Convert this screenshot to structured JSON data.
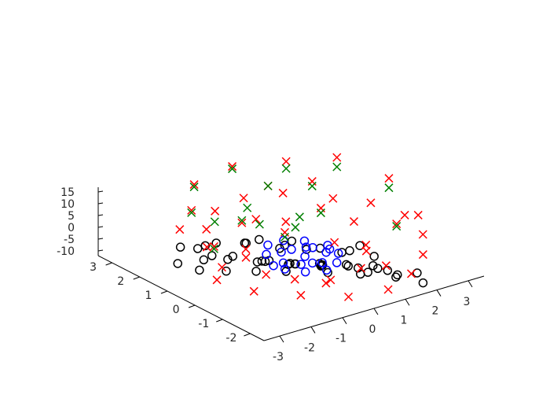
{
  "chart_data": {
    "type": "scatter",
    "subtype": "3d",
    "title": "",
    "xlabel": "",
    "ylabel": "",
    "zlabel": "",
    "xlim": [
      -3.5,
      3.5
    ],
    "ylim": [
      -2.5,
      3.5
    ],
    "zlim": [
      -12,
      17
    ],
    "x_ticks": [
      -3,
      -2,
      -1,
      0,
      1,
      2,
      3
    ],
    "y_ticks": [
      -2,
      -1,
      0,
      1,
      2,
      3
    ],
    "z_ticks": [
      -10,
      -5,
      0,
      5,
      10,
      15
    ],
    "grid": false,
    "legend": "none",
    "series": [
      {
        "marker": "o",
        "color": "#000000",
        "points": [
          [
            -2.2,
            2.1,
            -12.0
          ],
          [
            -1.5,
            2.8,
            -12.0
          ],
          [
            -1.2,
            2.0,
            -12.0
          ],
          [
            -0.8,
            1.7,
            -12.0
          ],
          [
            -0.4,
            1.1,
            -12.0
          ],
          [
            0.0,
            0.6,
            -12.0
          ],
          [
            0.6,
            0.1,
            -12.0
          ],
          [
            1.3,
            -0.8,
            -12.0
          ],
          [
            1.8,
            -1.3,
            -12.0
          ],
          [
            2.0,
            -2.0,
            -12.0
          ],
          [
            -1.9,
            1.5,
            -8.0
          ],
          [
            -1.4,
            1.2,
            -8.0
          ],
          [
            -0.9,
            0.7,
            -8.0
          ],
          [
            -0.3,
            0.2,
            -8.0
          ],
          [
            0.3,
            -0.3,
            -8.0
          ],
          [
            0.9,
            -0.9,
            -8.0
          ],
          [
            1.4,
            -1.4,
            -8.0
          ],
          [
            1.9,
            -1.9,
            -8.0
          ],
          [
            -1.5,
            1.9,
            -6.0
          ],
          [
            -0.6,
            1.5,
            -6.0
          ],
          [
            -0.1,
            0.8,
            -6.0
          ],
          [
            0.4,
            0.4,
            -6.0
          ],
          [
            1.0,
            -0.2,
            -6.0
          ],
          [
            1.5,
            -0.8,
            -6.0
          ],
          [
            -1.0,
            0.3,
            -5.0
          ],
          [
            -0.5,
            -0.2,
            -5.0
          ],
          [
            0.0,
            -0.6,
            -5.0
          ],
          [
            0.5,
            -1.0,
            -5.0
          ],
          [
            1.0,
            -1.5,
            -5.0
          ],
          [
            -2.3,
            1.2,
            -9.0
          ],
          [
            -1.8,
            0.8,
            -9.0
          ],
          [
            -1.2,
            0.4,
            -9.0
          ],
          [
            -0.6,
            0.0,
            -9.0
          ],
          [
            0.2,
            -0.6,
            -9.0
          ],
          [
            0.8,
            -1.1,
            -9.0
          ],
          [
            1.4,
            -1.7,
            -9.0
          ],
          [
            -0.2,
            1.9,
            -10.0
          ],
          [
            0.5,
            1.3,
            -10.0
          ],
          [
            1.1,
            0.7,
            -10.0
          ],
          [
            1.6,
            0.2,
            -10.0
          ],
          [
            -0.8,
            2.3,
            -10.0
          ],
          [
            0.3,
            2.0,
            -11.0
          ],
          [
            0.9,
            1.5,
            -11.0
          ],
          [
            2.1,
            0.4,
            -11.0
          ],
          [
            -1.3,
            2.4,
            -11.0
          ],
          [
            -0.3,
            0.0,
            -7.0
          ],
          [
            0.2,
            -0.3,
            -7.0
          ],
          [
            0.7,
            -0.7,
            -7.0
          ],
          [
            -0.7,
            0.5,
            -7.0
          ],
          [
            1.2,
            -1.1,
            -7.0
          ]
        ]
      },
      {
        "marker": "o",
        "color": "#0000ff",
        "points": [
          [
            -1.0,
            0.0,
            -5.0
          ],
          [
            -0.7,
            0.6,
            -5.0
          ],
          [
            -0.3,
            1.0,
            -5.0
          ],
          [
            0.2,
            1.0,
            -5.0
          ],
          [
            0.6,
            0.7,
            -5.0
          ],
          [
            0.9,
            0.2,
            -5.0
          ],
          [
            0.8,
            -0.3,
            -5.0
          ],
          [
            0.4,
            -0.7,
            -5.0
          ],
          [
            -0.1,
            -0.9,
            -5.0
          ],
          [
            -0.6,
            -0.7,
            -5.0
          ],
          [
            -0.9,
            -0.3,
            -5.0
          ],
          [
            0.0,
            0.0,
            -5.0
          ],
          [
            -0.4,
            0.4,
            -4.0
          ],
          [
            0.3,
            0.3,
            -4.0
          ],
          [
            0.5,
            -0.2,
            -4.0
          ],
          [
            -0.2,
            -0.5,
            -4.0
          ],
          [
            -0.6,
            0.1,
            -6.0
          ],
          [
            0.1,
            0.6,
            -6.0
          ],
          [
            0.6,
            0.4,
            -6.0
          ],
          [
            0.2,
            -0.4,
            -6.0
          ],
          [
            -0.3,
            -0.2,
            -6.0
          ],
          [
            0.7,
            -0.1,
            -4.0
          ]
        ]
      },
      {
        "marker": "x",
        "color": "#ff0000",
        "points": [
          [
            -2.8,
            0.0,
            -4.0
          ],
          [
            -2.2,
            0.5,
            -4.0
          ],
          [
            -1.8,
            1.5,
            -3.0
          ],
          [
            -1.2,
            2.2,
            -2.0
          ],
          [
            -0.4,
            2.8,
            -1.0
          ],
          [
            0.6,
            2.9,
            0.0
          ],
          [
            1.5,
            2.5,
            1.0
          ],
          [
            2.3,
            1.6,
            1.0
          ],
          [
            2.8,
            0.8,
            2.0
          ],
          [
            3.0,
            -0.2,
            2.0
          ],
          [
            2.7,
            -1.2,
            1.0
          ],
          [
            2.0,
            -2.0,
            0.0
          ],
          [
            1.1,
            -2.6,
            -1.0
          ],
          [
            0.1,
            -2.9,
            -2.0
          ],
          [
            -0.9,
            -2.6,
            -3.0
          ],
          [
            -1.8,
            -1.9,
            -3.0
          ],
          [
            -2.5,
            -1.0,
            -4.0
          ],
          [
            -1.0,
            1.0,
            -4.0
          ],
          [
            0.8,
            1.6,
            -3.0
          ],
          [
            1.5,
            -0.5,
            -3.0
          ],
          [
            -0.5,
            -1.5,
            -4.0
          ],
          [
            -1.5,
            -0.3,
            -5.0
          ],
          [
            0.2,
            2.0,
            -2.0
          ],
          [
            2.0,
            0.5,
            -1.0
          ],
          [
            1.0,
            -1.8,
            -2.0
          ],
          [
            -1.2,
            -1.0,
            -4.0
          ],
          [
            -2.1,
            0.9,
            2.0
          ],
          [
            -1.5,
            2.4,
            6.0
          ],
          [
            -0.8,
            3.1,
            10.0
          ],
          [
            0.5,
            3.2,
            12.0
          ],
          [
            1.6,
            2.5,
            14.0
          ],
          [
            2.6,
            1.8,
            16.0
          ],
          [
            3.2,
            0.6,
            12.0
          ],
          [
            1.3,
            0.9,
            5.0
          ],
          [
            -0.2,
            0.5,
            3.0
          ],
          [
            0.5,
            -0.5,
            2.0
          ],
          [
            -1.7,
            0.2,
            0.0
          ],
          [
            0.9,
            -1.2,
            1.0
          ],
          [
            2.3,
            -0.7,
            4.0
          ],
          [
            -0.6,
            1.6,
            2.0
          ],
          [
            1.9,
            1.9,
            8.0
          ],
          [
            -2.4,
            1.8,
            5.0
          ],
          [
            0.2,
            -1.8,
            0.0
          ],
          [
            2.9,
            -0.8,
            6.0
          ],
          [
            1.2,
            2.7,
            4.0
          ],
          [
            -1.0,
            -1.9,
            -1.0
          ]
        ]
      },
      {
        "marker": "x",
        "color": "#007f00",
        "points": [
          [
            -1.5,
            2.4,
            5.0
          ],
          [
            -0.8,
            3.1,
            9.0
          ],
          [
            0.5,
            3.2,
            11.0
          ],
          [
            1.6,
            2.5,
            11.0
          ],
          [
            2.6,
            1.8,
            12.0
          ],
          [
            3.2,
            0.6,
            8.0
          ],
          [
            1.3,
            0.9,
            3.0
          ],
          [
            -0.2,
            0.5,
            1.0
          ],
          [
            -2.1,
            0.9,
            1.0
          ],
          [
            1.9,
            1.9,
            6.0
          ],
          [
            -0.6,
            1.6,
            3.0
          ],
          [
            2.3,
            -0.7,
            3.0
          ],
          [
            0.1,
            2.2,
            2.0
          ],
          [
            -1.2,
            1.9,
            3.0
          ],
          [
            0.8,
            1.1,
            2.0
          ],
          [
            1.2,
            2.7,
            4.0
          ],
          [
            -0.3,
            1.3,
            2.0
          ],
          [
            0.4,
            0.8,
            1.0
          ]
        ]
      }
    ]
  }
}
